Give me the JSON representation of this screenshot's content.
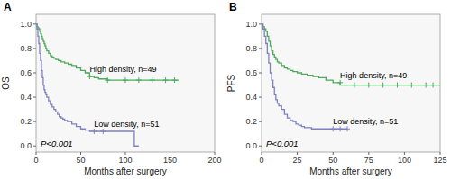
{
  "chart_data": [
    {
      "type": "step",
      "title": "A",
      "x_label": "Months after surgery",
      "y_label": "OS",
      "xlim": [
        0,
        200
      ],
      "ylim": [
        -0.05,
        1.08
      ],
      "xticks": [
        0,
        50,
        100,
        150,
        200
      ],
      "yticks": [
        {
          "value": 0.0,
          "label": "0.0"
        },
        0.2,
        0.4,
        0.6,
        0.8,
        {
          "value": 1.0,
          "label": "1.0"
        }
      ],
      "grid": false,
      "annotation": "P<0.001",
      "series": [
        {
          "name": "High density, n=49",
          "color": "#4caa5c",
          "marker": "plus",
          "x": [
            0,
            1,
            2,
            3,
            4,
            5,
            6,
            7,
            8,
            9,
            10,
            11,
            12,
            14,
            16,
            18,
            20,
            22,
            25,
            28,
            32,
            36,
            40,
            45,
            50,
            55,
            60,
            65,
            70,
            80,
            90,
            100,
            110,
            120,
            130,
            140,
            150,
            160
          ],
          "values": [
            1.0,
            0.98,
            0.97,
            0.96,
            0.94,
            0.92,
            0.9,
            0.88,
            0.86,
            0.84,
            0.82,
            0.8,
            0.78,
            0.76,
            0.74,
            0.73,
            0.72,
            0.71,
            0.7,
            0.69,
            0.68,
            0.67,
            0.66,
            0.64,
            0.62,
            0.6,
            0.57,
            0.56,
            0.55,
            0.54,
            0.54,
            0.54,
            0.54,
            0.54,
            0.54,
            0.54,
            0.54,
            0.54
          ],
          "censor_x": [
            60,
            80,
            100,
            115,
            130,
            145,
            155
          ],
          "censor_values": [
            0.57,
            0.54,
            0.54,
            0.54,
            0.54,
            0.54,
            0.54
          ]
        },
        {
          "name": "Low density, n=51",
          "color": "#8080c0",
          "marker": "plus",
          "x": [
            0,
            1,
            2,
            3,
            4,
            5,
            6,
            7,
            8,
            9,
            10,
            11,
            12,
            14,
            16,
            18,
            20,
            22,
            24,
            26,
            28,
            30,
            32,
            35,
            40,
            45,
            50,
            55,
            60,
            65,
            70,
            80,
            100,
            110,
            115
          ],
          "values": [
            1.0,
            0.96,
            0.9,
            0.84,
            0.76,
            0.7,
            0.62,
            0.56,
            0.5,
            0.46,
            0.44,
            0.42,
            0.4,
            0.37,
            0.34,
            0.32,
            0.3,
            0.28,
            0.26,
            0.24,
            0.23,
            0.22,
            0.21,
            0.2,
            0.18,
            0.16,
            0.14,
            0.13,
            0.12,
            0.12,
            0.12,
            0.12,
            0.12,
            0.0,
            0.0
          ],
          "censor_x": [
            65,
            75
          ],
          "censor_values": [
            0.12,
            0.12
          ]
        }
      ]
    },
    {
      "type": "step",
      "title": "B",
      "x_label": "Months after surgery",
      "y_label": "PFS",
      "xlim": [
        0,
        125
      ],
      "ylim": [
        -0.05,
        1.08
      ],
      "xticks": [
        0,
        25,
        50,
        75,
        100,
        125
      ],
      "yticks": [
        {
          "value": 0.0,
          "label": "0.0"
        },
        0.2,
        0.4,
        0.6,
        0.8,
        {
          "value": 1.0,
          "label": "1.0"
        }
      ],
      "grid": false,
      "annotation": "P<0.001",
      "series": [
        {
          "name": "High density, n=49",
          "color": "#4caa5c",
          "marker": "plus",
          "x": [
            0,
            1,
            2,
            3,
            4,
            5,
            6,
            7,
            8,
            9,
            10,
            11,
            12,
            14,
            16,
            18,
            20,
            22,
            25,
            28,
            32,
            36,
            40,
            45,
            50,
            55,
            60,
            65,
            70,
            80,
            90,
            100,
            110,
            120,
            125
          ],
          "values": [
            1.0,
            0.98,
            0.96,
            0.94,
            0.9,
            0.86,
            0.82,
            0.78,
            0.75,
            0.73,
            0.71,
            0.69,
            0.68,
            0.66,
            0.64,
            0.63,
            0.62,
            0.61,
            0.6,
            0.59,
            0.58,
            0.57,
            0.56,
            0.54,
            0.52,
            0.5,
            0.5,
            0.5,
            0.5,
            0.5,
            0.5,
            0.5,
            0.5,
            0.5,
            0.5
          ],
          "censor_x": [
            55,
            65,
            75,
            85,
            95,
            105,
            115,
            120
          ],
          "censor_values": [
            0.52,
            0.5,
            0.5,
            0.5,
            0.5,
            0.5,
            0.5,
            0.5
          ]
        },
        {
          "name": "Low density, n=51",
          "color": "#8080c0",
          "marker": "plus",
          "x": [
            0,
            1,
            2,
            3,
            4,
            5,
            6,
            7,
            8,
            9,
            10,
            11,
            12,
            14,
            16,
            18,
            20,
            22,
            24,
            26,
            28,
            30,
            32,
            35,
            40,
            45,
            50,
            55,
            60
          ],
          "values": [
            1.0,
            0.96,
            0.9,
            0.84,
            0.76,
            0.68,
            0.6,
            0.54,
            0.48,
            0.42,
            0.38,
            0.35,
            0.33,
            0.3,
            0.26,
            0.23,
            0.21,
            0.2,
            0.18,
            0.17,
            0.16,
            0.15,
            0.15,
            0.14,
            0.14,
            0.14,
            0.14,
            0.14,
            0.14
          ],
          "censor_x": [
            50,
            55,
            60
          ],
          "censor_values": [
            0.14,
            0.14,
            0.14
          ]
        }
      ]
    }
  ]
}
